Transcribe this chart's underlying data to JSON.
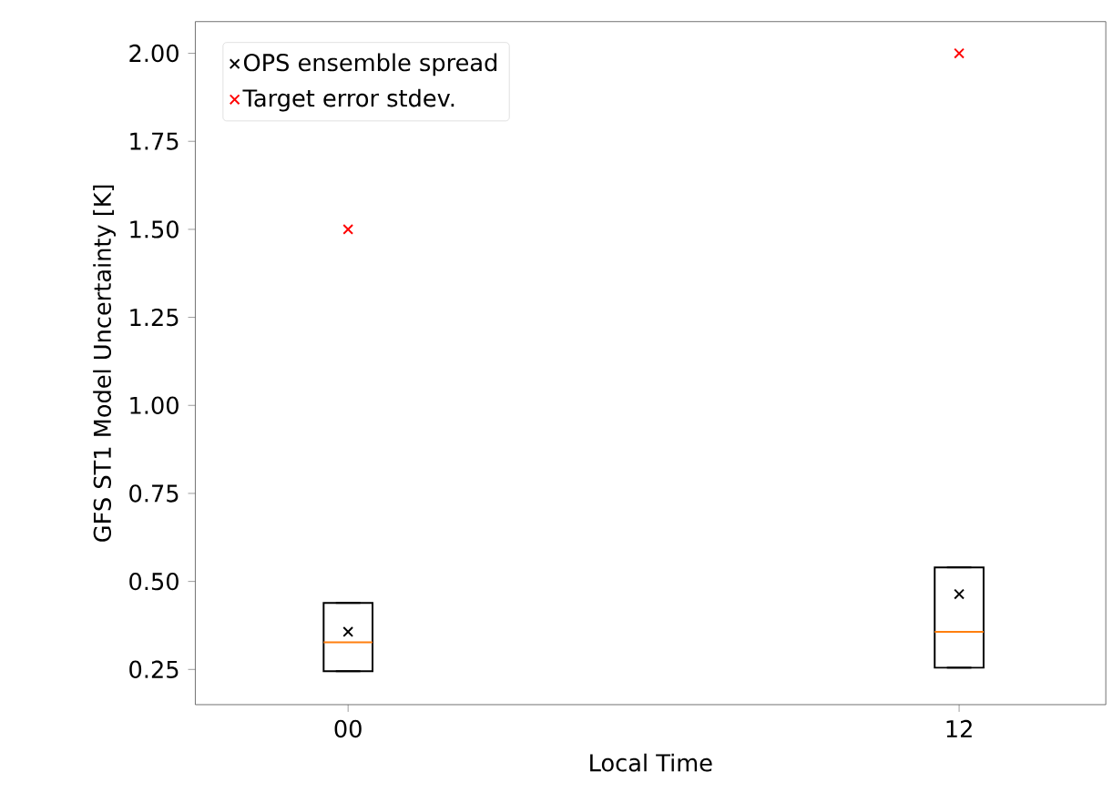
{
  "chart_data": {
    "type": "box",
    "xlabel": "Local Time",
    "ylabel": "GFS ST1 Model Uncertainty [K]",
    "categories": [
      "00",
      "12"
    ],
    "boxes": [
      {
        "low": 0.245,
        "q1": 0.245,
        "median": 0.327,
        "q3": 0.439,
        "high": 0.439
      },
      {
        "low": 0.255,
        "q1": 0.255,
        "median": 0.357,
        "q3": 0.54,
        "high": 0.54
      }
    ],
    "series": [
      {
        "type": "scatter",
        "name": "OPS ensemble spread",
        "color": "#000000",
        "x": [
          "00",
          "12"
        ],
        "values": [
          0.357,
          0.464
        ]
      },
      {
        "type": "scatter",
        "name": "Target error stdev.",
        "color": "#ff0000",
        "x": [
          "00",
          "12"
        ],
        "values": [
          1.5,
          2.0
        ]
      }
    ],
    "ylim": [
      0.15,
      2.09
    ],
    "yticks": [
      0.25,
      {
        "value": 0.5,
        "label": "0.50"
      },
      0.75,
      {
        "value": 1.0,
        "label": "1.00"
      },
      1.25,
      {
        "value": 1.5,
        "label": "1.50"
      },
      1.75,
      {
        "value": 2.0,
        "label": "2.00"
      }
    ],
    "legend": "top left",
    "marker": "cross",
    "grid": false
  }
}
